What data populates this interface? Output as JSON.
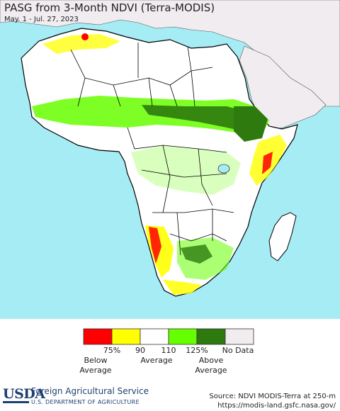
{
  "title": "PASG from 3-Month NDVI (Terra-MODIS)",
  "subtitle": "May. 1 - Jul. 27, 2023",
  "colors": {
    "ocean": "#a6ecf5",
    "land_neighbors": "#f0ecf0",
    "land_nodata_sahara": "#ffffff",
    "below_75": "#ff0000",
    "range_75_90": "#ffff00",
    "range_90_110": "#ffffff",
    "range_110_125": "#66ff00",
    "above_125": "#2e7a0e",
    "no_data": "#f0ecf0",
    "border": "#000000"
  },
  "legend": {
    "ticks": [
      "75%",
      "90",
      "110",
      "125%",
      "No Data"
    ],
    "captions": {
      "below": [
        "Below",
        "Average"
      ],
      "average": "Average",
      "above": [
        "Above",
        "Average"
      ]
    }
  },
  "footer": {
    "logo": "USDA",
    "agency": "Foreign Agricultural Service",
    "department": "U.S. DEPARTMENT OF AGRICULTURE",
    "source_line1": "Source: NDVI MODIS-Terra at 250-m",
    "source_line2": "https://modis-land.gsfc.nasa.gov/"
  }
}
